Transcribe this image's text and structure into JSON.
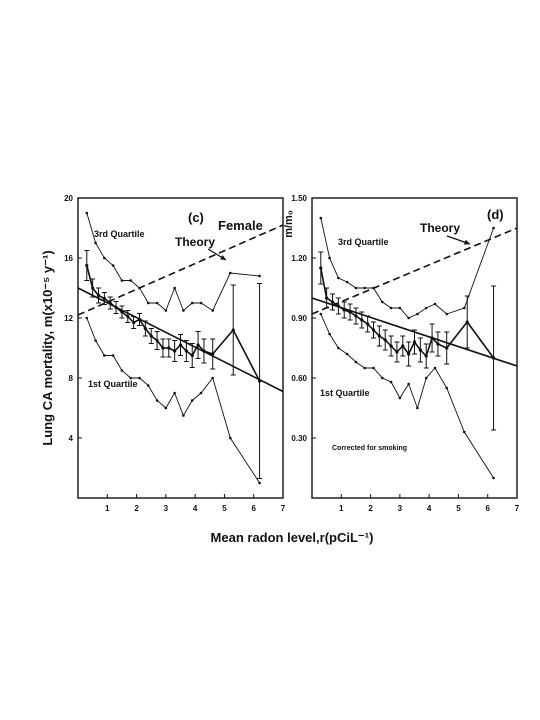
{
  "xlabel": "Mean radon level,r(pCiL⁻¹)",
  "chart_data": [
    {
      "type": "line",
      "panel_tag": "(c)",
      "corner_label": "Female",
      "ylabel": "Lung CA mortality, m(x10⁻⁵ y⁻¹)",
      "xlim": [
        0,
        7
      ],
      "ylim": [
        0,
        20
      ],
      "x_ticks": [
        "1",
        "2",
        "3",
        "4",
        "5",
        "6",
        "7"
      ],
      "y_ticks": [
        "4",
        "8",
        "12",
        "16",
        "20"
      ],
      "labels": {
        "upper": "3rd Quartile",
        "lower": "1st Quartile",
        "theory": "Theory"
      },
      "series": [
        {
          "role": "mean",
          "x": [
            0.3,
            0.5,
            0.7,
            0.9,
            1.1,
            1.3,
            1.5,
            1.7,
            1.9,
            2.1,
            2.3,
            2.5,
            2.7,
            2.9,
            3.1,
            3.3,
            3.5,
            3.7,
            3.9,
            4.1,
            4.3,
            4.6,
            5.3,
            6.2
          ],
          "y": [
            15.5,
            14.0,
            13.5,
            13.3,
            13.0,
            12.7,
            12.4,
            12.1,
            11.7,
            11.9,
            11.3,
            10.8,
            10.5,
            10.0,
            10.0,
            9.8,
            10.2,
            9.8,
            9.5,
            10.2,
            9.8,
            9.6,
            11.2,
            7.8
          ],
          "err": [
            1.0,
            0.6,
            0.5,
            0.4,
            0.4,
            0.4,
            0.4,
            0.4,
            0.4,
            0.4,
            0.5,
            0.5,
            0.6,
            0.6,
            0.6,
            0.7,
            0.7,
            0.7,
            0.8,
            0.9,
            0.8,
            1.0,
            3.0,
            6.5
          ]
        },
        {
          "role": "upper",
          "x": [
            0.3,
            0.6,
            0.9,
            1.2,
            1.5,
            1.8,
            2.1,
            2.4,
            2.7,
            3.0,
            3.3,
            3.6,
            3.9,
            4.2,
            4.6,
            5.2,
            6.2
          ],
          "y": [
            19.0,
            17.0,
            16.0,
            15.5,
            14.5,
            14.5,
            14.0,
            13.0,
            13.0,
            12.5,
            14.0,
            12.5,
            13.0,
            13.0,
            12.5,
            15.0,
            14.8
          ]
        },
        {
          "role": "lower",
          "x": [
            0.3,
            0.6,
            0.9,
            1.2,
            1.5,
            1.8,
            2.1,
            2.4,
            2.7,
            3.0,
            3.3,
            3.6,
            3.9,
            4.2,
            4.6,
            5.2,
            6.2
          ],
          "y": [
            12.0,
            10.5,
            9.5,
            9.5,
            8.5,
            8.0,
            8.0,
            7.5,
            6.5,
            6.0,
            7.0,
            5.5,
            6.5,
            7.0,
            8.0,
            4.0,
            1.0
          ]
        },
        {
          "role": "fit",
          "x": [
            0,
            7
          ],
          "y": [
            14.0,
            7.1
          ]
        },
        {
          "role": "theory",
          "x": [
            0,
            7
          ],
          "y": [
            12.2,
            18.2
          ]
        }
      ]
    },
    {
      "type": "line",
      "panel_tag": "(d)",
      "ylabel": "m/m₀",
      "note": "Corrected for smoking",
      "xlim": [
        0,
        7
      ],
      "ylim": [
        0,
        1.5
      ],
      "x_ticks": [
        "1",
        "2",
        "3",
        "4",
        "5",
        "6",
        "7"
      ],
      "y_ticks": [
        "0.30",
        "0.60",
        "0.90",
        "1.20",
        "1.50"
      ],
      "labels": {
        "upper": "3rd Quartile",
        "lower": "1st Quartile",
        "theory": "Theory"
      },
      "series": [
        {
          "role": "mean",
          "x": [
            0.3,
            0.5,
            0.7,
            0.9,
            1.1,
            1.3,
            1.5,
            1.7,
            1.9,
            2.1,
            2.3,
            2.5,
            2.7,
            2.9,
            3.1,
            3.3,
            3.5,
            3.7,
            3.9,
            4.1,
            4.3,
            4.6,
            5.3,
            6.2
          ],
          "y": [
            1.15,
            1.0,
            0.98,
            0.96,
            0.94,
            0.93,
            0.91,
            0.89,
            0.87,
            0.84,
            0.81,
            0.79,
            0.76,
            0.73,
            0.76,
            0.72,
            0.78,
            0.74,
            0.71,
            0.8,
            0.77,
            0.75,
            0.88,
            0.7
          ],
          "err": [
            0.08,
            0.05,
            0.04,
            0.04,
            0.04,
            0.04,
            0.04,
            0.04,
            0.04,
            0.04,
            0.05,
            0.05,
            0.05,
            0.05,
            0.05,
            0.06,
            0.06,
            0.06,
            0.06,
            0.07,
            0.06,
            0.08,
            0.13,
            0.36
          ]
        },
        {
          "role": "upper",
          "x": [
            0.3,
            0.6,
            0.9,
            1.2,
            1.5,
            1.8,
            2.1,
            2.4,
            2.7,
            3.0,
            3.3,
            3.6,
            3.9,
            4.2,
            4.6,
            5.2,
            6.2
          ],
          "y": [
            1.4,
            1.2,
            1.1,
            1.08,
            1.05,
            1.05,
            1.05,
            0.98,
            0.95,
            0.95,
            0.9,
            0.92,
            0.95,
            0.97,
            0.92,
            0.95,
            1.35
          ]
        },
        {
          "role": "lower",
          "x": [
            0.3,
            0.6,
            0.9,
            1.2,
            1.5,
            1.8,
            2.1,
            2.4,
            2.7,
            3.0,
            3.3,
            3.6,
            3.9,
            4.2,
            4.6,
            5.2,
            6.2
          ],
          "y": [
            0.92,
            0.82,
            0.75,
            0.72,
            0.68,
            0.65,
            0.65,
            0.6,
            0.58,
            0.5,
            0.57,
            0.45,
            0.6,
            0.65,
            0.55,
            0.33,
            0.1
          ]
        },
        {
          "role": "fit",
          "x": [
            0,
            7
          ],
          "y": [
            1.0,
            0.66
          ]
        },
        {
          "role": "theory",
          "x": [
            0,
            7
          ],
          "y": [
            0.92,
            1.35
          ]
        }
      ]
    }
  ]
}
